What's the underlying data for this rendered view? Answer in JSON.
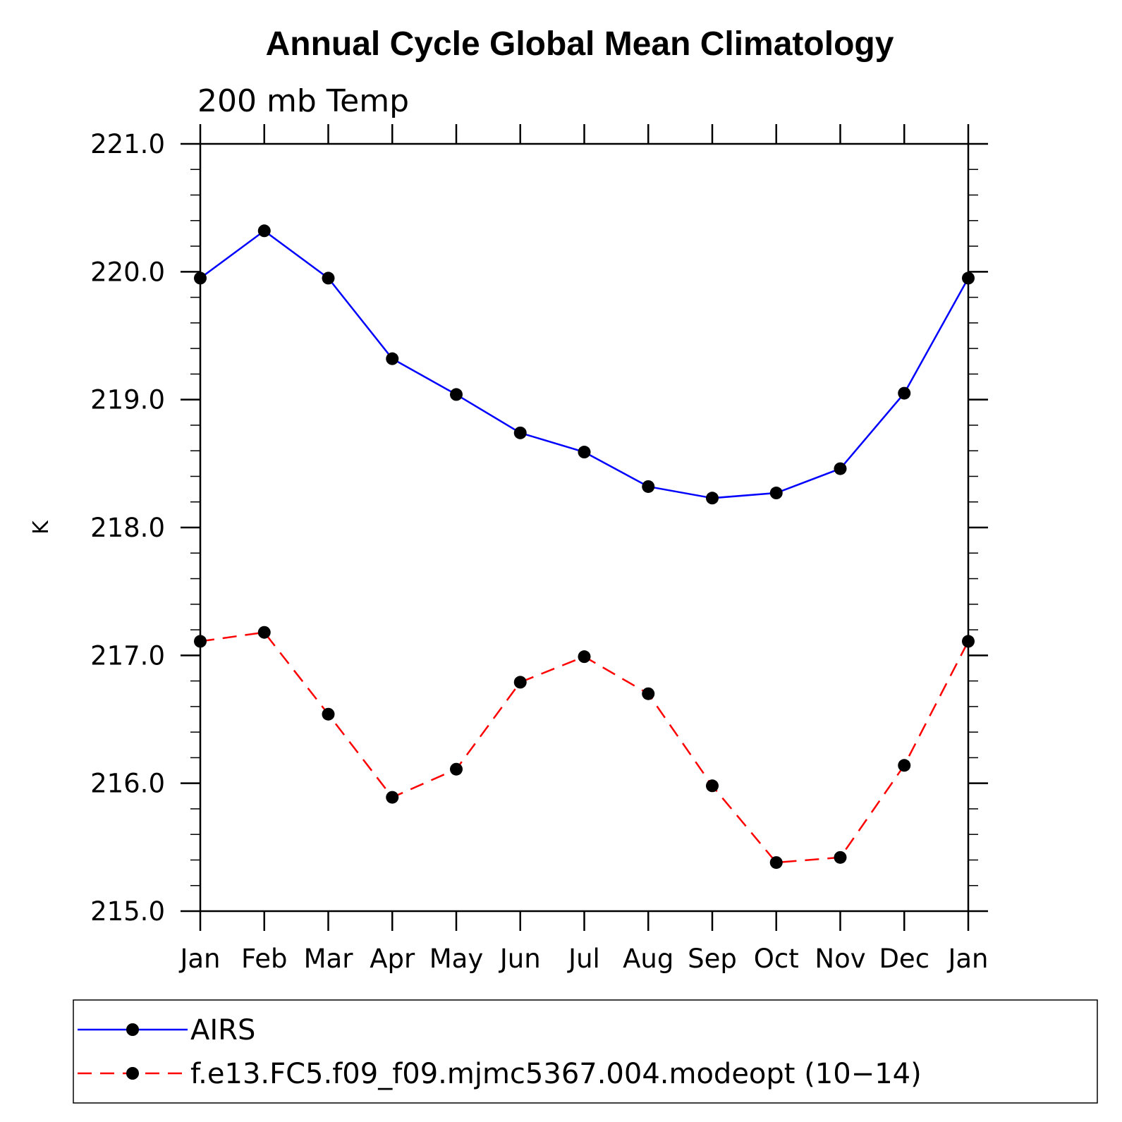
{
  "chart_data": {
    "type": "line",
    "title": "Annual Cycle Global Mean Climatology",
    "subtitle": "200 mb Temp",
    "xlabel": "",
    "ylabel": "K",
    "categories": [
      "Jan",
      "Feb",
      "Mar",
      "Apr",
      "May",
      "Jun",
      "Jul",
      "Aug",
      "Sep",
      "Oct",
      "Nov",
      "Dec",
      "Jan"
    ],
    "yticks": [
      "215.0",
      "216.0",
      "217.0",
      "218.0",
      "219.0",
      "220.0",
      "221.0"
    ],
    "ylim": [
      215.0,
      221.0
    ],
    "grid": false,
    "legend_position": "bottom",
    "series": [
      {
        "name": "AIRS",
        "color": "#0000ff",
        "dash": "solid",
        "values": [
          219.95,
          220.32,
          219.95,
          219.32,
          219.04,
          218.74,
          218.59,
          218.32,
          218.23,
          218.27,
          218.46,
          219.05,
          219.95
        ]
      },
      {
        "name": "f.e13.FC5.f09_f09.mjmc5367.004.modeopt (10−14)",
        "color": "#ff0000",
        "dash": "dashed",
        "values": [
          217.11,
          217.18,
          216.54,
          215.89,
          216.11,
          216.79,
          216.99,
          216.7,
          215.98,
          215.38,
          215.42,
          216.14,
          217.11
        ]
      }
    ]
  }
}
